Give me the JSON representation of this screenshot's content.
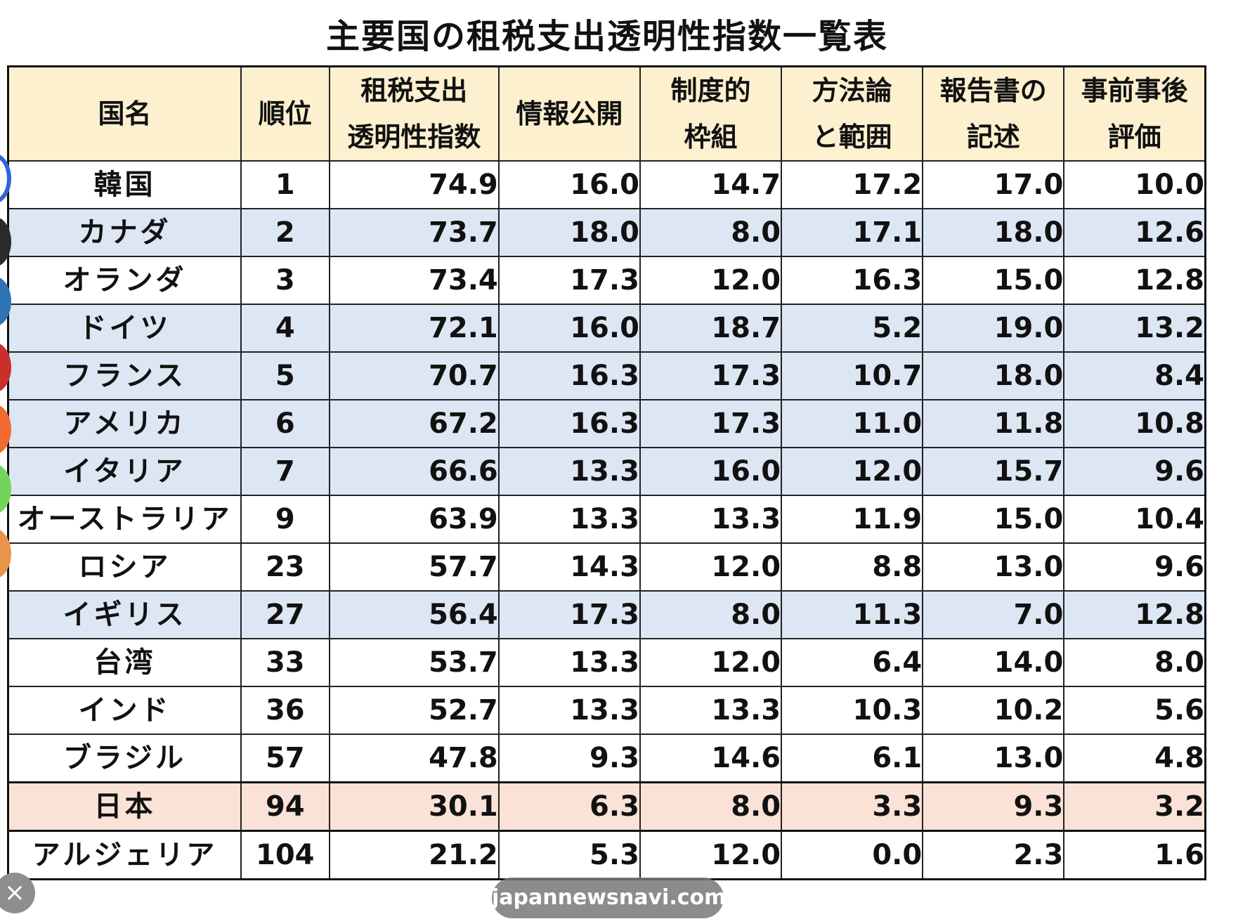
{
  "title": "主要国の租税支出透明性指数一覧表",
  "headers": {
    "country": "国名",
    "rank": "順位",
    "index_l1": "租税支出",
    "index_l2": "透明性指数",
    "disclosure": "情報公開",
    "framework_l1": "制度的",
    "framework_l2": "枠組",
    "method_l1": "方法論",
    "method_l2": "と範囲",
    "report_l1": "報告書の",
    "report_l2": "記述",
    "eval_l1": "事前事後",
    "eval_l2": "評価"
  },
  "rows": [
    {
      "country": "韓国",
      "rank": "1",
      "index": "74.9",
      "disclosure": "16.0",
      "framework": "14.7",
      "method": "17.2",
      "report": "17.0",
      "eval": "10.0"
    },
    {
      "country": "カナダ",
      "rank": "2",
      "index": "73.7",
      "disclosure": "18.0",
      "framework": "8.0",
      "method": "17.1",
      "report": "18.0",
      "eval": "12.6"
    },
    {
      "country": "オランダ",
      "rank": "3",
      "index": "73.4",
      "disclosure": "17.3",
      "framework": "12.0",
      "method": "16.3",
      "report": "15.0",
      "eval": "12.8"
    },
    {
      "country": "ドイツ",
      "rank": "4",
      "index": "72.1",
      "disclosure": "16.0",
      "framework": "18.7",
      "method": "5.2",
      "report": "19.0",
      "eval": "13.2"
    },
    {
      "country": "フランス",
      "rank": "5",
      "index": "70.7",
      "disclosure": "16.3",
      "framework": "17.3",
      "method": "10.7",
      "report": "18.0",
      "eval": "8.4"
    },
    {
      "country": "アメリカ",
      "rank": "6",
      "index": "67.2",
      "disclosure": "16.3",
      "framework": "17.3",
      "method": "11.0",
      "report": "11.8",
      "eval": "10.8"
    },
    {
      "country": "イタリア",
      "rank": "7",
      "index": "66.6",
      "disclosure": "13.3",
      "framework": "16.0",
      "method": "12.0",
      "report": "15.7",
      "eval": "9.6"
    },
    {
      "country": "オーストラリア",
      "rank": "9",
      "index": "63.9",
      "disclosure": "13.3",
      "framework": "13.3",
      "method": "11.9",
      "report": "15.0",
      "eval": "10.4"
    },
    {
      "country": "ロシア",
      "rank": "23",
      "index": "57.7",
      "disclosure": "14.3",
      "framework": "12.0",
      "method": "8.8",
      "report": "13.0",
      "eval": "9.6"
    },
    {
      "country": "イギリス",
      "rank": "27",
      "index": "56.4",
      "disclosure": "17.3",
      "framework": "8.0",
      "method": "11.3",
      "report": "7.0",
      "eval": "12.8"
    },
    {
      "country": "台湾",
      "rank": "33",
      "index": "53.7",
      "disclosure": "13.3",
      "framework": "12.0",
      "method": "6.4",
      "report": "14.0",
      "eval": "8.0"
    },
    {
      "country": "インド",
      "rank": "36",
      "index": "52.7",
      "disclosure": "13.3",
      "framework": "13.3",
      "method": "10.3",
      "report": "10.2",
      "eval": "5.6"
    },
    {
      "country": "ブラジル",
      "rank": "57",
      "index": "47.8",
      "disclosure": "9.3",
      "framework": "14.6",
      "method": "6.1",
      "report": "13.0",
      "eval": "4.8"
    },
    {
      "country": "日本",
      "rank": "94",
      "index": "30.1",
      "disclosure": "6.3",
      "framework": "8.0",
      "method": "3.3",
      "report": "9.3",
      "eval": "3.2"
    },
    {
      "country": "アルジェリア",
      "rank": "104",
      "index": "21.2",
      "disclosure": "5.3",
      "framework": "12.0",
      "method": "0.0",
      "report": "2.3",
      "eval": "1.6"
    }
  ],
  "colors": {
    "header_bg": "#fdf0cf",
    "row_highlight_blue": "#dde7f3",
    "row_highlight_peach": "#fbe2d6"
  },
  "side_dots": [
    "#2f66d8",
    "#2a2a2a",
    "#2f75b5",
    "#c9302c",
    "#f06a32",
    "#74d45a",
    "#e8954a"
  ],
  "overlay": {
    "close_icon": "×",
    "watermark": "japannewsnavi.com"
  }
}
